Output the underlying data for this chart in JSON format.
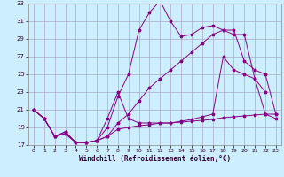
{
  "title": "",
  "xlabel": "Windchill (Refroidissement éolien,°C)",
  "background_color": "#cceeff",
  "grid_color": "#aaaacc",
  "line_color": "#880088",
  "xmin": 0,
  "xmax": 23,
  "ymin": 17,
  "ymax": 33,
  "yticks": [
    17,
    19,
    21,
    23,
    25,
    27,
    29,
    31,
    33
  ],
  "xticks": [
    0,
    1,
    2,
    3,
    4,
    5,
    6,
    7,
    8,
    9,
    10,
    11,
    12,
    13,
    14,
    15,
    16,
    17,
    18,
    19,
    20,
    21,
    22,
    23
  ],
  "line_a_x": [
    0,
    1,
    2,
    3,
    4,
    5,
    6,
    7,
    8,
    9,
    10,
    11,
    12,
    13,
    14,
    15,
    16,
    17,
    18,
    19,
    20,
    21,
    22
  ],
  "line_a_y": [
    21.0,
    20.0,
    18.0,
    18.5,
    17.3,
    17.3,
    17.5,
    19.0,
    22.5,
    25.0,
    30.0,
    32.0,
    33.3,
    31.0,
    29.3,
    29.5,
    30.3,
    30.5,
    30.0,
    29.5,
    29.5,
    24.5,
    23.0
  ],
  "line_b_x": [
    0,
    1,
    2,
    3,
    4,
    5,
    6,
    7,
    8,
    9,
    10,
    11,
    12,
    13,
    14,
    15,
    16,
    17,
    18,
    19,
    20,
    21,
    22,
    23
  ],
  "line_b_y": [
    21.0,
    20.0,
    18.0,
    18.5,
    17.3,
    17.3,
    17.5,
    18.0,
    19.5,
    20.5,
    22.0,
    23.5,
    24.5,
    25.5,
    26.5,
    27.5,
    28.5,
    29.5,
    30.0,
    30.0,
    26.5,
    25.5,
    25.0,
    20.5
  ],
  "line_c_x": [
    0,
    1,
    2,
    3,
    4,
    5,
    6,
    7,
    8,
    9,
    10,
    11,
    12,
    13,
    14,
    15,
    16,
    17,
    18,
    19,
    20,
    21,
    22,
    23
  ],
  "line_c_y": [
    21.0,
    20.0,
    18.0,
    18.3,
    17.3,
    17.3,
    17.5,
    18.0,
    18.8,
    19.0,
    19.2,
    19.3,
    19.5,
    19.5,
    19.6,
    19.7,
    19.8,
    19.9,
    20.1,
    20.2,
    20.3,
    20.4,
    20.5,
    20.5
  ],
  "line_d_x": [
    0,
    1,
    2,
    3,
    4,
    5,
    6,
    7,
    8,
    9,
    10,
    11,
    12,
    13,
    14,
    15,
    16,
    17,
    18,
    19,
    20,
    21,
    22,
    23
  ],
  "line_d_y": [
    21.0,
    20.0,
    18.0,
    18.3,
    17.3,
    17.3,
    17.5,
    20.0,
    23.0,
    20.0,
    19.5,
    19.5,
    19.5,
    19.5,
    19.7,
    19.9,
    20.2,
    20.5,
    27.0,
    25.5,
    25.0,
    24.5,
    20.5,
    20.0
  ]
}
